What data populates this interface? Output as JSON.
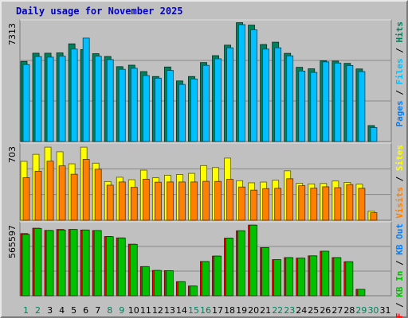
{
  "chart_data": [
    {
      "type": "bar",
      "title": "Daily usage for November 2025",
      "categories": [
        "1",
        "2",
        "3",
        "4",
        "5",
        "6",
        "7",
        "8",
        "9",
        "10",
        "11",
        "12",
        "13",
        "14",
        "15",
        "16",
        "17",
        "18",
        "19",
        "20",
        "21",
        "22",
        "23",
        "24",
        "25",
        "26",
        "27",
        "28",
        "29",
        "30",
        "31"
      ],
      "weekend_days": [
        "1",
        "2",
        "8",
        "9",
        "15",
        "16",
        "22",
        "23",
        "29",
        "30"
      ],
      "ylim": [
        0,
        7313
      ],
      "ymax_label": "7313",
      "legend": [
        "Pages",
        "Files",
        "Hits"
      ],
      "series": [
        {
          "name": "Hits",
          "color": "#00805c",
          "values": [
            4880,
            5380,
            5380,
            5400,
            5950,
            5600,
            5350,
            5180,
            4560,
            4650,
            4260,
            3960,
            4540,
            3690,
            3960,
            4810,
            5230,
            5870,
            7240,
            7090,
            5910,
            6050,
            5370,
            4520,
            4430,
            4920,
            4900,
            4760,
            4420,
            970,
            0
          ]
        },
        {
          "name": "Files",
          "color": "#00c0ff",
          "values": [
            4690,
            5180,
            5140,
            5200,
            5630,
            6300,
            5200,
            4990,
            4400,
            4460,
            4020,
            3860,
            4330,
            3480,
            3810,
            4640,
            5040,
            5710,
            7120,
            6800,
            5630,
            5710,
            5220,
            4290,
            4210,
            4850,
            4780,
            4630,
            4260,
            850,
            0
          ]
        },
        {
          "name": "Pages",
          "color": "#0080ff",
          "values": [
            0,
            0,
            0,
            0,
            0,
            0,
            0,
            0,
            0,
            0,
            0,
            0,
            0,
            0,
            0,
            0,
            0,
            0,
            0,
            0,
            0,
            0,
            0,
            0,
            0,
            0,
            0,
            0,
            0,
            0,
            0
          ]
        }
      ]
    },
    {
      "type": "bar",
      "categories": [
        "1",
        "2",
        "3",
        "4",
        "5",
        "6",
        "7",
        "8",
        "9",
        "10",
        "11",
        "12",
        "13",
        "14",
        "15",
        "16",
        "17",
        "18",
        "19",
        "20",
        "21",
        "22",
        "23",
        "24",
        "25",
        "26",
        "27",
        "28",
        "29",
        "30",
        "31"
      ],
      "ylim": [
        0,
        703
      ],
      "ymax_label": "703",
      "legend": [
        "Visits",
        "Sites"
      ],
      "series": [
        {
          "name": "Visits",
          "color": "#ffff00",
          "values": [
            548,
            613,
            680,
            637,
            525,
            680,
            531,
            360,
            400,
            377,
            466,
            395,
            419,
            426,
            436,
            508,
            490,
            578,
            368,
            348,
            355,
            372,
            460,
            344,
            338,
            342,
            365,
            352,
            336,
            84,
            0
          ]
        },
        {
          "name": "Sites",
          "color": "#ff8000",
          "values": [
            396,
            456,
            550,
            506,
            428,
            566,
            475,
            326,
            356,
            306,
            382,
            354,
            356,
            356,
            356,
            362,
            361,
            381,
            309,
            280,
            294,
            297,
            386,
            321,
            298,
            311,
            303,
            332,
            297,
            70,
            0
          ]
        }
      ]
    },
    {
      "type": "bar",
      "categories": [
        "1",
        "2",
        "3",
        "4",
        "5",
        "6",
        "7",
        "8",
        "9",
        "10",
        "11",
        "12",
        "13",
        "14",
        "15",
        "16",
        "17",
        "18",
        "19",
        "20",
        "21",
        "22",
        "23",
        "24",
        "25",
        "26",
        "27",
        "28",
        "29",
        "30",
        "31"
      ],
      "ylim": [
        0,
        565597
      ],
      "ymax_label": "565597",
      "legend": [
        "KB F",
        "KB In",
        "KB Out"
      ],
      "series": [
        {
          "name": "KB In",
          "color": "#0080ff",
          "values": [
            0,
            0,
            0,
            0,
            0,
            0,
            0,
            0,
            0,
            0,
            0,
            0,
            0,
            0,
            0,
            0,
            0,
            0,
            0,
            0,
            0,
            0,
            0,
            0,
            0,
            0,
            0,
            0,
            0,
            0,
            0
          ]
        },
        {
          "name": "KB Out",
          "color": "#00c000",
          "values": [
            480000,
            526000,
            510000,
            514000,
            518000,
            514000,
            510000,
            462000,
            452000,
            402000,
            228000,
            198000,
            196000,
            110000,
            76000,
            268000,
            310000,
            450000,
            508000,
            552000,
            376000,
            282000,
            298000,
            294000,
            312000,
            348000,
            298000,
            266000,
            50000,
            0,
            0
          ]
        },
        {
          "name": "KB F",
          "color": "#ff0000",
          "values": [
            486000,
            528000,
            511000,
            518000,
            518000,
            514000,
            510000,
            463000,
            452000,
            403000,
            228000,
            198000,
            196000,
            110000,
            76000,
            268000,
            310000,
            450000,
            508000,
            552000,
            376000,
            282000,
            298000,
            294000,
            312000,
            348000,
            298000,
            266000,
            50000,
            0,
            0
          ]
        }
      ]
    }
  ]
}
